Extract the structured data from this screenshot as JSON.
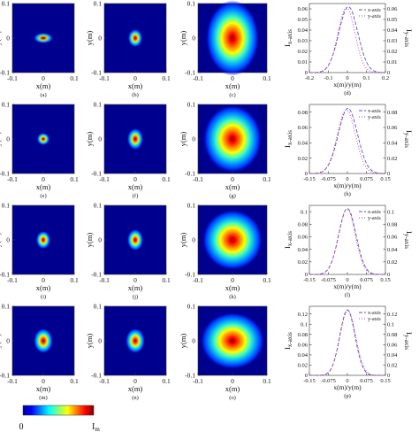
{
  "heatmap_panels": [
    {
      "row": 0,
      "col": 0,
      "caption": "(a)",
      "sx": 0.012,
      "sy": 0.006,
      "peak": 0.82,
      "xticks": [
        "-0.1",
        "0",
        "0.1"
      ],
      "yticks": [
        "0.1",
        "0",
        "-0.1"
      ],
      "xlabel": "x(m)",
      "ylabel": "y(m)"
    },
    {
      "row": 0,
      "col": 1,
      "caption": "(b)",
      "sx": 0.009,
      "sy": 0.01,
      "peak": 0.92,
      "xticks": [
        "-0.1",
        "0",
        "0.1"
      ],
      "yticks": [
        "0.1",
        "0",
        "-0.1"
      ],
      "xlabel": "x(m)",
      "ylabel": "y(m)"
    },
    {
      "row": 0,
      "col": 2,
      "caption": "(c)",
      "sx": 0.03,
      "sy": 0.042,
      "peak": 1.0,
      "xticks": [
        "-0.1",
        "0",
        "0.1"
      ],
      "yticks": [
        "0.1",
        "0",
        "-0.1"
      ],
      "xlabel": "x(m)",
      "ylabel": "y(m)"
    },
    {
      "row": 1,
      "col": 0,
      "caption": "(e)",
      "sx": 0.008,
      "sy": 0.007,
      "peak": 0.9,
      "xticks": [
        "-0.1",
        "0",
        "0.1"
      ],
      "yticks": [
        "0.1",
        "0",
        "-0.1"
      ],
      "xlabel": "x(m)",
      "ylabel": "y(m)"
    },
    {
      "row": 1,
      "col": 1,
      "caption": "(f)",
      "sx": 0.01,
      "sy": 0.012,
      "peak": 0.92,
      "xticks": [
        "-0.1",
        "0",
        "0.1"
      ],
      "yticks": [
        "0.1",
        "0",
        "-0.1"
      ],
      "xlabel": "x(m)",
      "ylabel": "y(m)"
    },
    {
      "row": 1,
      "col": 2,
      "caption": "(g)",
      "sx": 0.033,
      "sy": 0.038,
      "peak": 1.0,
      "xticks": [
        "-0.1",
        "0",
        "0.1"
      ],
      "yticks": [
        "0.1",
        "0",
        "-0.1"
      ],
      "xlabel": "x(m)",
      "ylabel": "y(m)"
    },
    {
      "row": 2,
      "col": 0,
      "caption": "(i)",
      "sx": 0.009,
      "sy": 0.01,
      "peak": 0.95,
      "xticks": [
        "-0.1",
        "0",
        "0.1"
      ],
      "yticks": [
        "0.1",
        "0",
        "-0.1"
      ],
      "xlabel": "x(m)",
      "ylabel": "y(m)"
    },
    {
      "row": 2,
      "col": 1,
      "caption": "(j)",
      "sx": 0.01,
      "sy": 0.012,
      "peak": 0.95,
      "xticks": [
        "-0.1",
        "0",
        "0.1"
      ],
      "yticks": [
        "0.1",
        "0",
        "-0.1"
      ],
      "xlabel": "x(m)",
      "ylabel": "y(m)"
    },
    {
      "row": 2,
      "col": 2,
      "caption": "(k)",
      "sx": 0.034,
      "sy": 0.034,
      "peak": 1.0,
      "xticks": [
        "-0.1",
        "0",
        "0.1"
      ],
      "yticks": [
        "0.1",
        "0",
        "-0.1"
      ],
      "xlabel": "x(m)",
      "ylabel": "y(m)"
    },
    {
      "row": 3,
      "col": 0,
      "caption": "(m)",
      "sx": 0.012,
      "sy": 0.014,
      "peak": 0.95,
      "xticks": [
        "-0.1",
        "0",
        "0.1"
      ],
      "yticks": [
        "0.1",
        "0",
        "-0.1"
      ],
      "xlabel": "x(m)",
      "ylabel": "y(m)"
    },
    {
      "row": 3,
      "col": 1,
      "caption": "(n)",
      "sx": 0.012,
      "sy": 0.014,
      "peak": 0.95,
      "xticks": [
        "-0.1",
        "0",
        "0.1"
      ],
      "yticks": [
        "0.1",
        "0",
        "-0.1"
      ],
      "xlabel": "x(m)",
      "ylabel": "y(m)"
    },
    {
      "row": 3,
      "col": 2,
      "caption": "(o)",
      "sx": 0.036,
      "sy": 0.032,
      "peak": 1.0,
      "xticks": [
        "-0.1",
        "0",
        "0.1"
      ],
      "yticks": [
        "0.1",
        "0",
        "-0.1"
      ],
      "xlabel": "x(m)",
      "ylabel": "y(m)"
    }
  ],
  "chart_data": [
    {
      "type": "line",
      "caption": "(d)",
      "xlabel": "x(m)/y(m)",
      "ylabel_left": "I_x-axis",
      "ylabel_right": "I_y-axis",
      "xlim": [
        -0.2,
        0.2
      ],
      "ylim": [
        0,
        0.065
      ],
      "xticks": [
        "-0.2",
        "-0.1",
        "0",
        "0.1",
        "0.2"
      ],
      "yticks": [
        "0",
        "0.01",
        "0.02",
        "0.03",
        "0.04",
        "0.05",
        "0.06"
      ],
      "series": [
        {
          "name": "x-axis",
          "peak": 0.062,
          "sigma": 0.05,
          "center": 0.005,
          "color": "#5555cc",
          "dash": "4,2"
        },
        {
          "name": "y-axis",
          "peak": 0.061,
          "sigma": 0.045,
          "center": -0.005,
          "color": "#cc3399",
          "dash": "1,2"
        }
      ],
      "legend": "top-right"
    },
    {
      "type": "line",
      "caption": "(h)",
      "xlabel": "x(m)/y(m)",
      "ylabel_left": "I_x-axis",
      "ylabel_right": "I_y-axis",
      "xlim": [
        -0.15,
        0.15
      ],
      "ylim": [
        0,
        0.09
      ],
      "xticks": [
        "-0.15",
        "-0.075",
        "0",
        "0.075",
        "0.15"
      ],
      "yticks": [
        "0",
        "0.02",
        "0.04",
        "0.06",
        "0.08"
      ],
      "series": [
        {
          "name": "x-axis",
          "peak": 0.085,
          "sigma": 0.038,
          "center": 0.002,
          "color": "#5555cc",
          "dash": "4,2"
        },
        {
          "name": "y-axis",
          "peak": 0.083,
          "sigma": 0.036,
          "center": -0.004,
          "color": "#cc3399",
          "dash": "1,2"
        }
      ],
      "legend": "top-right"
    },
    {
      "type": "line",
      "caption": "(l)",
      "xlabel": "x(m)/y(m)",
      "ylabel_left": "I_x-axis",
      "ylabel_right": "I_y-axis",
      "xlim": [
        -0.15,
        0.15
      ],
      "ylim": [
        0,
        0.11
      ],
      "xticks": [
        "-0.15",
        "-0.075",
        "0",
        "0.075",
        "0.15"
      ],
      "yticks": [
        "0",
        "0.02",
        "0.04",
        "0.06",
        "0.08",
        "0.1"
      ],
      "series": [
        {
          "name": "x-axis",
          "peak": 0.105,
          "sigma": 0.034,
          "center": 0.0,
          "color": "#5555cc",
          "dash": "4,2"
        },
        {
          "name": "y-axis",
          "peak": 0.104,
          "sigma": 0.033,
          "center": -0.002,
          "color": "#cc3399",
          "dash": "1,2"
        }
      ],
      "legend": "top-right"
    },
    {
      "type": "line",
      "caption": "(p)",
      "xlabel": "x(m)/y(m)",
      "ylabel_left": "I_x-axis",
      "ylabel_right": "I_y-axis",
      "xlim": [
        -0.15,
        0.15
      ],
      "ylim": [
        0,
        0.135
      ],
      "xticks": [
        "-0.15",
        "-0.075",
        "0",
        "0.075",
        "0.15"
      ],
      "yticks": [
        "0",
        "0.02",
        "0.04",
        "0.06",
        "0.08",
        "0.1",
        "0.12"
      ],
      "series": [
        {
          "name": "x-axis",
          "peak": 0.128,
          "sigma": 0.03,
          "center": 0.0,
          "color": "#5555cc",
          "dash": "4,2"
        },
        {
          "name": "y-axis",
          "peak": 0.127,
          "sigma": 0.031,
          "center": 0.002,
          "color": "#cc3399",
          "dash": "1,2"
        }
      ],
      "legend": "top-right"
    }
  ],
  "colorbar": {
    "min_label": "0",
    "max_label": "I_m"
  }
}
